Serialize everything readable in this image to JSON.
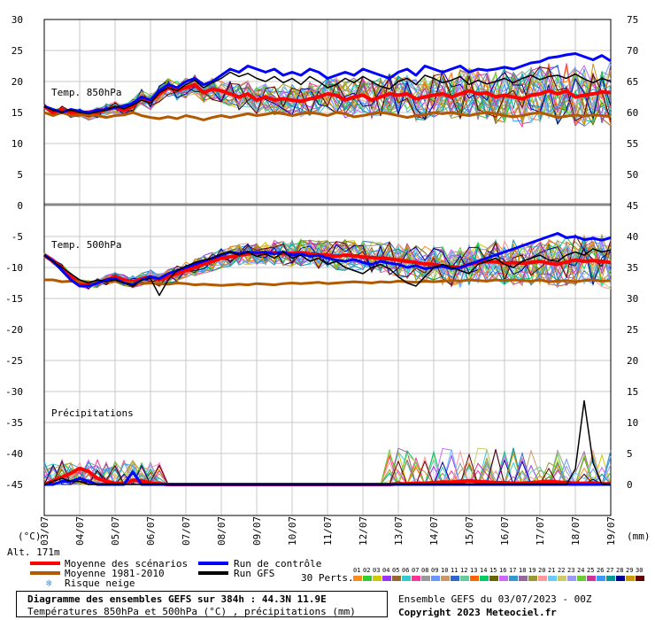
{
  "chart_data": {
    "type": "line",
    "title": "Diagramme des ensembles GEFS sur 384h : 44.3N 11.9E",
    "subtitle": "Températures 850hPa et 500hPa (°C) , précipitations (mm)",
    "x_tick_labels": [
      "03/07",
      "04/07",
      "05/07",
      "06/07",
      "07/07",
      "08/07",
      "09/07",
      "10/07",
      "11/07",
      "12/07",
      "13/07",
      "14/07",
      "15/07",
      "16/07",
      "17/07",
      "18/07",
      "19/07"
    ],
    "left_axis": {
      "unit": "(°C)",
      "ylim": [
        -50,
        30
      ],
      "ticks": [
        30,
        25,
        20,
        15,
        10,
        5,
        0,
        -5,
        -10,
        -15,
        -20,
        -25,
        -30,
        -35,
        -40,
        -45
      ]
    },
    "right_axis": {
      "unit": "(mm)",
      "ticks": [
        75,
        70,
        65,
        60,
        55,
        50,
        45,
        40,
        35,
        30,
        25,
        20,
        15,
        10,
        5,
        0
      ]
    },
    "panels": [
      {
        "name": "Temp. 850hPa",
        "series": [
          {
            "name": "Moyenne des scénarios",
            "color": "#ff0000",
            "values": [
              16,
              15,
              15.5,
              14.8,
              15,
              14.5,
              15,
              15.5,
              15.8,
              15.3,
              16,
              17.5,
              16.8,
              18,
              19,
              18.5,
              19,
              19.5,
              18.2,
              18.8,
              18.5,
              18,
              17.5,
              18,
              17,
              17.5,
              17,
              17.2,
              17,
              16.8,
              17.2,
              17.5,
              18,
              17.8,
              17,
              17.5,
              17.8,
              17,
              17.5,
              18,
              17.8,
              18,
              17.2,
              17.5,
              17.8,
              18,
              17.5,
              18,
              18.5,
              18,
              18.2,
              17.5,
              17.8,
              17.5,
              17.2,
              17.8,
              18,
              18.5,
              18,
              18.5,
              17.5,
              17.8,
              18,
              18.3,
              18.2
            ]
          },
          {
            "name": "Moyenne 1981-2010",
            "color": "#b35900",
            "values": [
              15,
              14.5,
              15,
              14.5,
              14.6,
              14.7,
              14.5,
              14.2,
              14.5,
              14.6,
              15,
              14.5,
              14.2,
              14,
              14.3,
              14,
              14.5,
              14.2,
              13.8,
              14.2,
              14.5,
              14.2,
              14.5,
              14.8,
              14.5,
              14.7,
              15,
              14.8,
              14.5,
              14.8,
              15,
              14.8,
              14.5,
              15,
              14.8,
              14.3,
              14.5,
              14.8,
              15,
              14.8,
              14.5,
              14.2,
              14.5,
              14.6,
              15,
              14.8,
              15,
              14.7,
              14.5,
              14.8,
              15,
              14.8,
              14.5,
              14.3,
              14.5,
              14.8,
              15,
              14.6,
              14.2,
              14.4,
              14.6,
              14.4,
              14.6,
              14.5,
              14.3
            ]
          },
          {
            "name": "Run de contrôle",
            "color": "#0000ff",
            "values": [
              16,
              15.5,
              15,
              15.5,
              15.2,
              15,
              15.3,
              15.5,
              15.8,
              16,
              16.5,
              17.5,
              17,
              18.5,
              19.5,
              19,
              20,
              20.5,
              19.5,
              20,
              21,
              22,
              21.5,
              22.5,
              22,
              21.5,
              22,
              21,
              21.5,
              21,
              22,
              21.5,
              20.5,
              21,
              21.5,
              21,
              22,
              21.5,
              21,
              20.5,
              21.5,
              22,
              21,
              22.5,
              22,
              21.5,
              22,
              22.5,
              21.5,
              22,
              21.8,
              22,
              22.3,
              22,
              22.5,
              23,
              23.2,
              23.8,
              24,
              24.3,
              24.5,
              24,
              23.5,
              24.2,
              23.3
            ]
          },
          {
            "name": "Run GFS",
            "color": "#000000",
            "values": [
              16,
              15.3,
              15.1,
              15.4,
              15,
              14.8,
              15.1,
              15.4,
              16,
              15.6,
              16.2,
              17,
              16.5,
              18.2,
              19,
              18.5,
              19.5,
              20.2,
              19,
              19.8,
              20.5,
              21.5,
              20.8,
              21.3,
              20.5,
              20,
              20.8,
              19.8,
              20.5,
              19.5,
              20.8,
              20,
              19,
              19.5,
              20.5,
              19.8,
              20.8,
              20,
              19.2,
              18.8,
              20,
              20.5,
              19.5,
              21,
              20.5,
              19.8,
              20.2,
              20.8,
              19.5,
              20.2,
              19.6,
              20,
              20.5,
              19.8,
              20.5,
              21,
              20.3,
              20.8,
              21,
              20.5,
              21.2,
              20.4,
              19.8,
              20.5,
              20
            ]
          }
        ]
      },
      {
        "name": "Temp. 500hPa",
        "series": [
          {
            "name": "Moyenne des scénarios",
            "color": "#ff0000",
            "values": [
              -8,
              -9,
              -10,
              -11.5,
              -12.5,
              -12.8,
              -12.5,
              -12,
              -11.5,
              -12,
              -12.3,
              -11.8,
              -11.5,
              -12,
              -11.5,
              -11,
              -10.5,
              -10,
              -9.5,
              -9,
              -8.5,
              -8.3,
              -8,
              -7.8,
              -7.7,
              -7.8,
              -7.6,
              -7.8,
              -7.7,
              -7.6,
              -7.8,
              -7.9,
              -8,
              -8.2,
              -8,
              -8.1,
              -8.3,
              -8.4,
              -8.5,
              -8.6,
              -8.8,
              -9,
              -9.2,
              -9.4,
              -9.5,
              -9.8,
              -9.9,
              -10,
              -9.5,
              -9.2,
              -9,
              -9.1,
              -9.3,
              -9.2,
              -9.3,
              -9.2,
              -9,
              -9.3,
              -9.5,
              -9.1,
              -8.8,
              -9,
              -8.9,
              -9,
              -9.2
            ]
          },
          {
            "name": "Moyenne 1981-2010",
            "color": "#b35900",
            "values": [
              -12,
              -12,
              -12.3,
              -12.2,
              -12.3,
              -12.4,
              -12.5,
              -12.3,
              -12.2,
              -12.4,
              -12.5,
              -12.6,
              -12.5,
              -12.6,
              -12.7,
              -12.5,
              -12.6,
              -12.8,
              -12.7,
              -12.8,
              -12.9,
              -12.8,
              -12.7,
              -12.8,
              -12.6,
              -12.7,
              -12.8,
              -12.6,
              -12.5,
              -12.6,
              -12.5,
              -12.4,
              -12.6,
              -12.5,
              -12.4,
              -12.3,
              -12.4,
              -12.5,
              -12.3,
              -12.4,
              -12.2,
              -12.3,
              -12.4,
              -12.2,
              -12.3,
              -12.2,
              -12.1,
              -12.2,
              -12,
              -12.1,
              -12.2,
              -12,
              -12.1,
              -12,
              -12.1,
              -12.2,
              -12,
              -12.3,
              -12.2,
              -12.1,
              -12.3,
              -12.1,
              -12,
              -12.2,
              -12.1
            ]
          },
          {
            "name": "Run de contrôle",
            "color": "#0000ff",
            "values": [
              -8,
              -9,
              -10.5,
              -12,
              -13,
              -13,
              -12.5,
              -12,
              -11.8,
              -12.5,
              -12.8,
              -12,
              -11.5,
              -11.8,
              -11,
              -10.5,
              -10,
              -9.5,
              -9,
              -8.5,
              -8,
              -7.5,
              -7.8,
              -7.5,
              -7.6,
              -7.5,
              -7.8,
              -7.5,
              -8,
              -7.8,
              -8.2,
              -8,
              -8.5,
              -8.8,
              -9,
              -8.7,
              -9.2,
              -9.5,
              -9,
              -9.3,
              -9.5,
              -10,
              -9.7,
              -10.2,
              -10,
              -9.8,
              -10.2,
              -10,
              -9.5,
              -9,
              -8.5,
              -8,
              -7.5,
              -7,
              -6.5,
              -6,
              -5.5,
              -5,
              -4.5,
              -5.2,
              -5,
              -5.5,
              -5.3,
              -5.6,
              -5.2
            ]
          },
          {
            "name": "Run GFS",
            "color": "#000000",
            "values": [
              -8,
              -9,
              -10,
              -11,
              -12,
              -12.5,
              -12,
              -12.3,
              -12,
              -12.5,
              -13,
              -12,
              -11.8,
              -14.5,
              -12,
              -10.5,
              -9.8,
              -9.2,
              -8.8,
              -8.5,
              -7.8,
              -7.5,
              -8,
              -7.5,
              -8.2,
              -7.8,
              -8.5,
              -7.5,
              -8.5,
              -8,
              -9,
              -8.5,
              -9.5,
              -9,
              -10,
              -10.5,
              -11,
              -10,
              -9.5,
              -10.2,
              -11.5,
              -12.5,
              -13,
              -11.5,
              -10,
              -9.5,
              -10,
              -10.5,
              -11,
              -9.5,
              -9,
              -8.5,
              -9.5,
              -10,
              -9,
              -8.5,
              -8,
              -8.8,
              -9,
              -8,
              -7.5,
              -8,
              -7,
              -7.5,
              -7.2
            ]
          }
        ]
      },
      {
        "name": "Précipitations",
        "unit": "mm",
        "series": [
          {
            "name": "Moyenne des scénarios",
            "color": "#ff0000",
            "values": [
              0,
              0.6,
              1.2,
              1.8,
              2.6,
              2.1,
              1,
              0.5,
              0.2,
              0.1,
              0.7,
              0.6,
              0.2,
              0.1,
              0,
              0,
              0,
              0,
              0,
              0,
              0,
              0,
              0,
              0,
              0,
              0,
              0,
              0,
              0,
              0,
              0,
              0,
              0,
              0,
              0,
              0,
              0,
              0,
              0,
              0,
              0.1,
              0.1,
              0.2,
              0.2,
              0.3,
              0.4,
              0.4,
              0.5,
              0.6,
              0.5,
              0.4,
              0.3,
              0.3,
              0.2,
              0.2,
              0.3,
              0.4,
              0.5,
              0.4,
              0.3,
              0.2,
              0.2,
              0.2,
              0.1,
              0.1
            ]
          },
          {
            "name": "Run de contrôle",
            "color": "#0000ff",
            "values": [
              0,
              0,
              0.5,
              0.5,
              1,
              0.5,
              0,
              0,
              0,
              0,
              2,
              0,
              0,
              0,
              0,
              0,
              0,
              0,
              0,
              0,
              0,
              0,
              0,
              0,
              0,
              0,
              0,
              0,
              0,
              0,
              0,
              0,
              0,
              0,
              0,
              0,
              0,
              0,
              0,
              0,
              0,
              0,
              0,
              0,
              0,
              0,
              0,
              0,
              0,
              0,
              0,
              0,
              0,
              0,
              0,
              0,
              0,
              0,
              0,
              0,
              0,
              0,
              0,
              0,
              0
            ]
          },
          {
            "name": "Run GFS",
            "color": "#000000",
            "values": [
              0,
              0.5,
              1,
              0.5,
              0.5,
              0,
              0,
              0,
              0,
              0,
              0,
              0,
              0,
              0,
              0,
              0,
              0,
              0,
              0,
              0,
              0,
              0,
              0,
              0,
              0,
              0,
              0,
              0,
              0,
              0,
              0,
              0,
              0,
              0,
              0,
              0,
              0,
              0,
              0,
              0,
              0,
              0,
              0,
              0,
              0,
              0,
              0,
              0,
              0,
              0,
              0,
              0,
              0,
              0,
              0,
              0,
              0,
              0,
              0,
              0,
              2.5,
              13.5,
              3.5,
              0,
              0
            ]
          }
        ]
      }
    ],
    "legend": [
      "Moyenne des scénarios",
      "Moyenne 1981-2010",
      "Risque neige",
      "Run de contrôle",
      "Run GFS"
    ],
    "grid": true
  },
  "labels": {
    "alt": "Alt. 171m",
    "legend_mean": "Moyenne des scénarios",
    "legend_clim": "Moyenne 1981-2010",
    "legend_snow": "Risque neige",
    "legend_control": "Run de contrôle",
    "legend_gfs": "Run GFS",
    "perts": "30 Perts.",
    "ensemble": "Ensemble GEFS du 03/07/2023 - 00Z",
    "copyright": "Copyright 2023 Meteociel.fr",
    "title": "Diagramme des ensembles GEFS sur 384h : 44.3N 11.9E",
    "subtitle": "Températures 850hPa et 500hPa (°C) , précipitations (mm)",
    "pert_numbers": [
      "01",
      "02",
      "03",
      "04",
      "05",
      "06",
      "07",
      "08",
      "09",
      "10",
      "11",
      "12",
      "13",
      "14",
      "15",
      "16",
      "17",
      "18",
      "19",
      "20",
      "21",
      "22",
      "23",
      "24",
      "25",
      "26",
      "27",
      "28",
      "29",
      "30"
    ]
  },
  "colors": {
    "mean": "#ff0000",
    "clim": "#b35900",
    "control": "#0000ff",
    "gfs": "#000000",
    "snow": "#3399ff",
    "pert_colors": [
      "#ff8c1a",
      "#33cc33",
      "#cccc00",
      "#9933ff",
      "#996633",
      "#33cccc",
      "#ff3399",
      "#999999",
      "#6699ff",
      "#cc9966",
      "#3366cc",
      "#66cc99",
      "#ff6600",
      "#00cc66",
      "#666600",
      "#cc66ff",
      "#3399cc",
      "#996699",
      "#999933",
      "#ff9999",
      "#66ccff",
      "#cccc66",
      "#9999ff",
      "#66cc33",
      "#cc3399",
      "#3399ff",
      "#009999",
      "#000099",
      "#cc9900",
      "#660000"
    ]
  }
}
